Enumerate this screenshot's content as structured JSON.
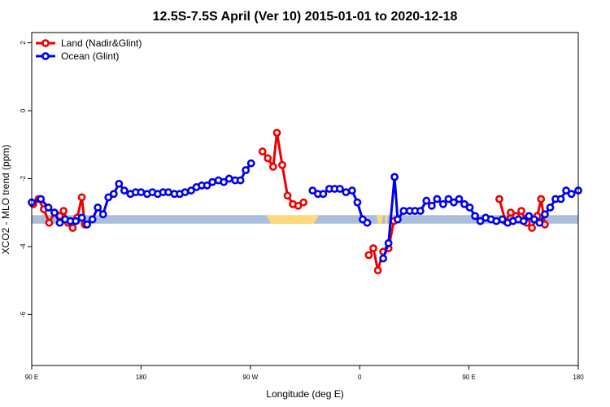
{
  "chart_data": {
    "type": "line",
    "title": "12.5S-7.5S April (Ver 10)   2015-01-01 to 2020-12-18",
    "xlabel": "Longitude (deg E)",
    "ylabel": "XCO2 - MLO trend (ppm)",
    "xlim": [
      90,
      450
    ],
    "ylim": [
      -7.5,
      2.3
    ],
    "x_ticks": [
      {
        "value": 90,
        "label": "90 E"
      },
      {
        "value": 162,
        "label": "180"
      },
      {
        "value": 234,
        "label": "90 W"
      },
      {
        "value": 306,
        "label": "0"
      },
      {
        "value": 378,
        "label": "90 E"
      },
      {
        "value": 450,
        "label": "180"
      }
    ],
    "y_ticks": [
      {
        "value": 2,
        "label": "2"
      },
      {
        "value": 0,
        "label": "0"
      },
      {
        "value": -2,
        "label": "-2"
      },
      {
        "value": -4,
        "label": "-4"
      },
      {
        "value": -6,
        "label": "-6"
      }
    ],
    "legend_position": "top-left",
    "grid": false,
    "band": {
      "y": -3.2,
      "thickness": 0.25,
      "base_color": "#a8bedb",
      "land_color": "#ffd97a",
      "land_ranges": [
        [
          244.5,
          279
        ],
        [
          317,
          321.5
        ],
        [
          322.5,
          324.5
        ]
      ]
    },
    "series": [
      {
        "name": "Land (Nadir&Glint)",
        "color": "#ee0000",
        "segments": [
          [
            [
              91,
              -2.75
            ],
            [
              94.5,
              -2.6
            ],
            [
              98,
              -2.9
            ],
            [
              101.5,
              -3.3
            ],
            [
              105,
              -3.0
            ],
            [
              108.5,
              -3.1
            ],
            [
              111,
              -2.95
            ],
            [
              114,
              -3.3
            ],
            [
              117,
              -3.45
            ],
            [
              120,
              -3.15
            ],
            [
              123,
              -2.55
            ],
            [
              125,
              -3.35
            ]
          ],
          [
            [
              242,
              -1.2
            ],
            [
              245.5,
              -1.4
            ],
            [
              249,
              -1.65
            ],
            [
              251.5,
              -0.65
            ],
            [
              255,
              -1.6
            ],
            [
              258.5,
              -2.5
            ],
            [
              262,
              -2.75
            ],
            [
              265.5,
              -2.8
            ],
            [
              269,
              -2.7
            ]
          ],
          [
            [
              312,
              -4.25
            ],
            [
              315,
              -4.05
            ],
            [
              318,
              -4.7
            ],
            [
              321.5,
              -4.15
            ],
            [
              325,
              -4.05
            ],
            [
              328.5,
              -3.25
            ]
          ],
          [
            [
              398,
              -2.6
            ],
            [
              402,
              -3.25
            ],
            [
              405.5,
              -3.0
            ],
            [
              409,
              -3.1
            ],
            [
              412.5,
              -2.95
            ],
            [
              416,
              -3.3
            ],
            [
              419.5,
              -3.45
            ],
            [
              423,
              -3.1
            ],
            [
              425.5,
              -2.6
            ],
            [
              428,
              -3.35
            ]
          ]
        ]
      },
      {
        "name": "Ocean (Glint)",
        "color": "#0000ee",
        "segments": [
          [
            [
              90,
              -2.7
            ],
            [
              96,
              -2.6
            ],
            [
              101,
              -2.85
            ],
            [
              105,
              -3.0
            ],
            [
              108.5,
              -3.3
            ],
            [
              112,
              -3.2
            ],
            [
              115.5,
              -3.25
            ],
            [
              119,
              -3.25
            ],
            [
              123,
              -3.15
            ],
            [
              126.5,
              -3.35
            ],
            [
              130,
              -3.2
            ],
            [
              133.5,
              -2.85
            ],
            [
              137,
              -3.05
            ],
            [
              140.5,
              -2.55
            ],
            [
              144,
              -2.45
            ],
            [
              147.5,
              -2.15
            ],
            [
              151,
              -2.35
            ],
            [
              155,
              -2.45
            ],
            [
              158.5,
              -2.4
            ],
            [
              162,
              -2.4
            ],
            [
              166,
              -2.45
            ],
            [
              169.5,
              -2.4
            ],
            [
              173,
              -2.45
            ],
            [
              176.5,
              -2.4
            ],
            [
              180,
              -2.4
            ],
            [
              184,
              -2.45
            ],
            [
              187.5,
              -2.45
            ],
            [
              191,
              -2.4
            ],
            [
              195,
              -2.35
            ],
            [
              198.5,
              -2.25
            ],
            [
              202,
              -2.2
            ],
            [
              205.5,
              -2.2
            ],
            [
              209,
              -2.1
            ],
            [
              213,
              -2.05
            ],
            [
              216.5,
              -2.1
            ],
            [
              220,
              -2.0
            ],
            [
              224,
              -2.05
            ],
            [
              227.5,
              -2.05
            ],
            [
              231,
              -1.75
            ],
            [
              234.5,
              -1.55
            ]
          ],
          [
            [
              275,
              -2.35
            ],
            [
              278.5,
              -2.45
            ],
            [
              282,
              -2.45
            ],
            [
              286,
              -2.3
            ],
            [
              289.5,
              -2.3
            ],
            [
              293,
              -2.3
            ],
            [
              297,
              -2.4
            ],
            [
              301,
              -2.35
            ],
            [
              304.5,
              -2.7
            ],
            [
              308,
              -3.2
            ],
            [
              311,
              -3.3
            ]
          ],
          [
            [
              321.5,
              -4.35
            ],
            [
              325,
              -3.9
            ],
            [
              329,
              -1.95
            ],
            [
              331,
              -3.2
            ],
            [
              335,
              -2.95
            ],
            [
              339,
              -2.95
            ],
            [
              342.5,
              -2.95
            ],
            [
              346,
              -2.95
            ],
            [
              350,
              -2.65
            ],
            [
              353.5,
              -2.8
            ],
            [
              357,
              -2.6
            ],
            [
              361,
              -2.75
            ],
            [
              364.5,
              -2.6
            ],
            [
              368,
              -2.7
            ],
            [
              371.5,
              -2.6
            ],
            [
              375,
              -2.75
            ],
            [
              378.5,
              -2.85
            ],
            [
              382,
              -3.1
            ],
            [
              385.5,
              -3.25
            ],
            [
              389,
              -3.15
            ],
            [
              392.5,
              -3.2
            ],
            [
              396,
              -3.25
            ],
            [
              400,
              -3.2
            ],
            [
              403.5,
              -3.3
            ],
            [
              407,
              -3.25
            ],
            [
              410.5,
              -3.2
            ],
            [
              414,
              -3.25
            ],
            [
              417.5,
              -3.1
            ],
            [
              421,
              -3.2
            ],
            [
              424.5,
              -3.3
            ],
            [
              428,
              -3.05
            ],
            [
              431.5,
              -2.85
            ],
            [
              435,
              -2.6
            ],
            [
              438.5,
              -2.6
            ],
            [
              442,
              -2.35
            ],
            [
              445.5,
              -2.45
            ],
            [
              450,
              -2.35
            ]
          ]
        ]
      }
    ]
  }
}
